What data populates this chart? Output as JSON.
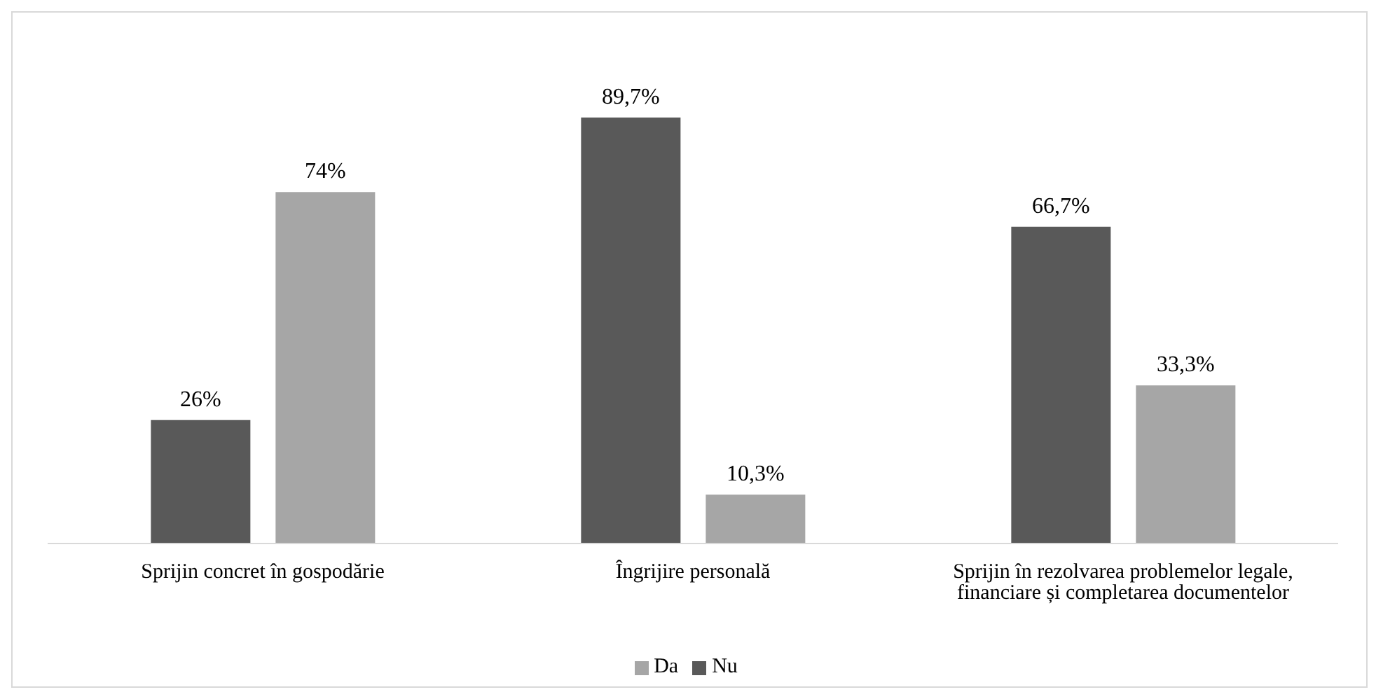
{
  "chart_data": {
    "type": "bar",
    "categories": [
      "Sprijin concret în gospodărie",
      "Îngrijire personală",
      "Sprijin în rezolvarea problemelor legale, financiare și completarea documentelor"
    ],
    "series": [
      {
        "name": "Nu",
        "color": "#595959",
        "values": [
          26,
          89.7,
          66.7
        ],
        "value_labels": [
          "26%",
          "89,7%",
          "66,7%"
        ]
      },
      {
        "name": "Da",
        "color": "#a6a6a6",
        "values": [
          74,
          10.3,
          33.3
        ],
        "value_labels": [
          "74%",
          "10,3%",
          "33,3%"
        ]
      }
    ],
    "legend": "bottom"
  }
}
